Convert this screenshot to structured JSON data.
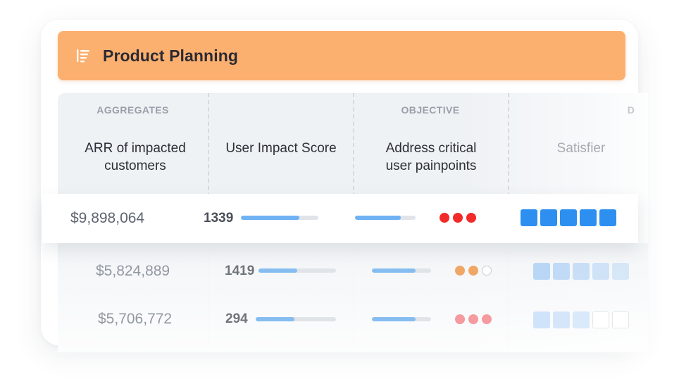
{
  "header": {
    "title": "Product Planning",
    "icon": "list-sort-icon"
  },
  "columns": {
    "group_aggregates": "AGGREGATES",
    "group_objective": "OBJECTIVE",
    "group_partial": "D",
    "arr_line1": "ARR of impacted",
    "arr_line2": "customers",
    "user_impact": "User Impact Score",
    "address_line1": "Address critical",
    "address_line2": "user painpoints",
    "satisfier": "Satisfier"
  },
  "rows": [
    {
      "arr": "$9,898,064",
      "score": "1339",
      "score_bar": 0.75,
      "objective_bar": 0.75,
      "dots": [
        "#f32a2a",
        "#f32a2a",
        "#f32a2a"
      ],
      "satisfier_filled": 5,
      "satisfier_color": "#2d8ff0"
    },
    {
      "arr": "$5,824,889",
      "score": "1419",
      "score_bar": 0.5,
      "objective_bar": 0.74,
      "dots": [
        "#f0a765",
        "#f0a765",
        "empty"
      ],
      "satisfier_filled": 5,
      "satisfier_color": "#b9d6f6"
    },
    {
      "arr": "$5,706,772",
      "score": "294",
      "score_bar": 0.48,
      "objective_bar": 0.74,
      "dots": [
        "#f59a9e",
        "#f59a9e",
        "#f59a9e"
      ],
      "satisfier_filled": 3,
      "satisfier_color": "#cfe3fa"
    }
  ]
}
